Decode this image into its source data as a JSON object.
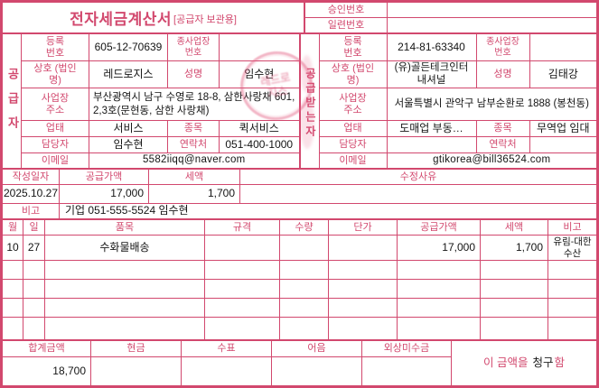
{
  "colors": {
    "accent": "#d2486e",
    "value_text": "#141414",
    "stamp": "#e15a7d",
    "background": "#ffffff"
  },
  "title": {
    "main": "전자세금계산서",
    "sub": "[공급자 보관용]"
  },
  "approval": {
    "approval_label": "승인번호",
    "approval_value": "",
    "serial_label": "일련번호",
    "serial_value": ""
  },
  "supplier": {
    "party_label": "공급자",
    "reg_no_label": "등록 번호",
    "reg_no": "605-12-70639",
    "sub_biz_label": "종사업장 번호",
    "sub_biz": "",
    "name_label": "상호 (법인명)",
    "name": "레드로지스",
    "ceo_label": "성명",
    "ceo": "임수현",
    "addr_label": "사업장 주소",
    "addr": "부산광역시 남구 수영로 18-8, 삼한사랑채 601,2,3호(문현동, 삼한 사랑채)",
    "biz_type_label": "업태",
    "biz_type": "서비스",
    "biz_item_label": "종목",
    "biz_item": "퀵서비스",
    "contact_label": "담당자",
    "contact": "임수현",
    "phone_label": "연락처",
    "phone": "051-400-1000",
    "email_label": "이메일",
    "email": "5582iiqq@naver.com",
    "seal_text": "레드로지스"
  },
  "buyer": {
    "party_label": "공급받는자",
    "reg_no_label": "등록 번호",
    "reg_no": "214-81-63340",
    "sub_biz_label": "종사업장 번호",
    "sub_biz": "",
    "name_label": "상호 (법인명)",
    "name": "(유)골든테크인터내셔널",
    "ceo_label": "성명",
    "ceo": "김태강",
    "addr_label": "사업장 주소",
    "addr": "서울특별시 관악구 남부순환로 1888 (봉천동)",
    "biz_type_label": "업태",
    "biz_type": "도매업 부동…",
    "biz_item_label": "종목",
    "biz_item": "무역업 임대",
    "contact_label": "담당자",
    "contact": "",
    "phone_label": "연락처",
    "phone": "",
    "email_label": "이메일",
    "email": "gtikorea@bill36524.com"
  },
  "summary": {
    "date_label": "작성일자",
    "date": "2025.10.27",
    "supply_label": "공급가액",
    "supply": "17,000",
    "tax_label": "세액",
    "tax": "1,700",
    "reason_label": "수정사유",
    "reason": "",
    "note_label": "비고",
    "note": "기업 051-555-5524 임수현"
  },
  "items": {
    "headers": [
      "월",
      "일",
      "품목",
      "규격",
      "수량",
      "단가",
      "공급가액",
      "세액",
      "비고"
    ],
    "rows": [
      {
        "month": "10",
        "day": "27",
        "name": "수화물배송",
        "spec": "",
        "qty": "",
        "price": "",
        "supply": "17,000",
        "tax": "1,700",
        "note": "유림-대한수산"
      }
    ],
    "empty_row_count": 4
  },
  "footer": {
    "total_label": "합계금액",
    "total": "18,700",
    "cash_label": "현금",
    "cash": "",
    "check_label": "수표",
    "check": "",
    "bill_label": "어음",
    "bill": "",
    "receivable_label": "외상미수금",
    "receivable": "",
    "claim_prefix": "이 금액을",
    "claim_word": "청구",
    "claim_suffix": "함"
  }
}
